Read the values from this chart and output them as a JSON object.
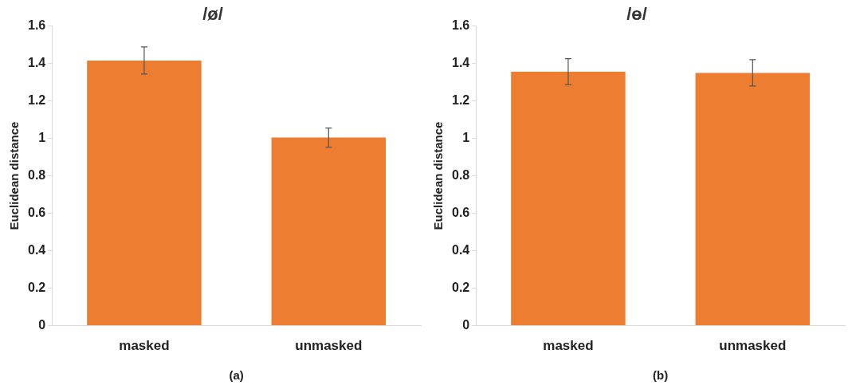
{
  "chart_data": [
    {
      "type": "bar",
      "title": "/ø/",
      "ylabel": "Euclidean distance",
      "categories": [
        "masked",
        "unmasked"
      ],
      "values": [
        1.415,
        1.004
      ],
      "errors": [
        0.072,
        0.051
      ],
      "color": "#ed7d31",
      "ylim": [
        0,
        1.6
      ],
      "yticks": [
        0,
        0.2,
        0.4,
        0.6,
        0.8,
        1,
        1.2,
        1.4,
        1.6
      ],
      "grid": false,
      "legend": false,
      "annotations": [
        "(a)"
      ]
    },
    {
      "type": "bar",
      "title": "/ɵ/",
      "ylabel": "Euclidean distance",
      "categories": [
        "masked",
        "unmasked"
      ],
      "values": [
        1.355,
        1.349
      ],
      "errors": [
        0.07,
        0.07
      ],
      "color": "#ed7d31",
      "ylim": [
        0,
        1.6
      ],
      "yticks": [
        0,
        0.2,
        0.4,
        0.6,
        0.8,
        1,
        1.2,
        1.4,
        1.6
      ],
      "grid": false,
      "legend": false,
      "annotations": [
        "(b)"
      ]
    }
  ]
}
